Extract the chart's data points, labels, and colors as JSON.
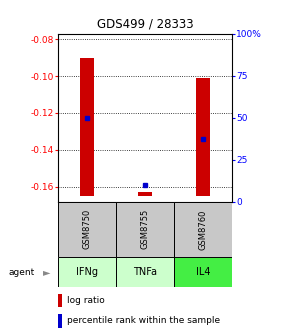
{
  "title": "GDS499 / 28333",
  "samples": [
    "GSM8750",
    "GSM8755",
    "GSM8760"
  ],
  "agents": [
    "IFNg",
    "TNFa",
    "IL4"
  ],
  "log_ratios": [
    -0.09,
    -0.163,
    -0.101
  ],
  "log_ratio_base": -0.165,
  "percentile_ranks": [
    50,
    10,
    37
  ],
  "ylim_left": [
    -0.168,
    -0.077
  ],
  "ylim_right": [
    0,
    100
  ],
  "left_ticks": [
    -0.16,
    -0.14,
    -0.12,
    -0.1,
    -0.08
  ],
  "right_ticks": [
    0,
    25,
    50,
    75,
    100
  ],
  "right_tick_labels": [
    "0",
    "25",
    "50",
    "75",
    "100%"
  ],
  "bar_color": "#cc0000",
  "percentile_color": "#0000cc",
  "sample_bg": "#c8c8c8",
  "agent_colors": [
    "#ccffcc",
    "#ccffcc",
    "#44ee44"
  ],
  "legend_log_ratio": "log ratio",
  "legend_percentile": "percentile rank within the sample",
  "agent_label": "agent"
}
